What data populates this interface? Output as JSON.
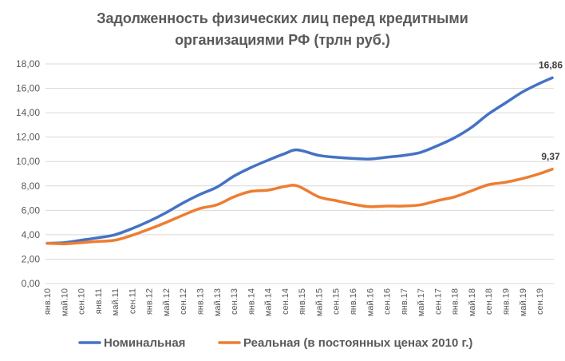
{
  "chart_data": {
    "type": "line",
    "title_line1": "Задолженность физических лиц перед  кредитными",
    "title_line2": "организациями РФ (трлн руб.)",
    "ylim": [
      0,
      18
    ],
    "yticks": [
      "0,00",
      "2,00",
      "4,00",
      "6,00",
      "8,00",
      "10,00",
      "12,00",
      "14,00",
      "16,00",
      "18,00"
    ],
    "ytick_values": [
      0,
      2,
      4,
      6,
      8,
      10,
      12,
      14,
      16,
      18
    ],
    "grid": true,
    "legend_position": "bottom",
    "x_period": {
      "start": "2010-01",
      "end": "2019-12",
      "frequency": "monthly"
    },
    "xticks": [
      {
        "label": "янв.10",
        "month": 0
      },
      {
        "label": "май.10",
        "month": 4
      },
      {
        "label": "сен.10",
        "month": 8
      },
      {
        "label": "янв.11",
        "month": 12
      },
      {
        "label": "май.11",
        "month": 16
      },
      {
        "label": "сен.11",
        "month": 20
      },
      {
        "label": "янв.12",
        "month": 24
      },
      {
        "label": "май.12",
        "month": 28
      },
      {
        "label": "сен.12",
        "month": 32
      },
      {
        "label": "янв.13",
        "month": 36
      },
      {
        "label": "май.13",
        "month": 40
      },
      {
        "label": "сен.13",
        "month": 44
      },
      {
        "label": "янв.14",
        "month": 48
      },
      {
        "label": "май.14",
        "month": 52
      },
      {
        "label": "сен.14",
        "month": 56
      },
      {
        "label": "янв.15",
        "month": 60
      },
      {
        "label": "май.15",
        "month": 64
      },
      {
        "label": "сен.15",
        "month": 68
      },
      {
        "label": "янв.16",
        "month": 72
      },
      {
        "label": "май.16",
        "month": 76
      },
      {
        "label": "сен.16",
        "month": 80
      },
      {
        "label": "янв.17",
        "month": 84
      },
      {
        "label": "май.17",
        "month": 88
      },
      {
        "label": "сен.17",
        "month": 92
      },
      {
        "label": "янв.18",
        "month": 96
      },
      {
        "label": "май.18",
        "month": 100
      },
      {
        "label": "сен.18",
        "month": 104
      },
      {
        "label": "янв.19",
        "month": 108
      },
      {
        "label": "май.19",
        "month": 112
      },
      {
        "label": "сен.19",
        "month": 116
      }
    ],
    "series": [
      {
        "name": "Номинальная",
        "color": "#4472C4",
        "end_label": "16,86",
        "points": [
          [
            "янв.10",
            3.3
          ],
          [
            "май.10",
            3.35
          ],
          [
            "сен.10",
            3.55
          ],
          [
            "янв.11",
            3.75
          ],
          [
            "май.11",
            4.0
          ],
          [
            "сен.11",
            4.5
          ],
          [
            "янв.12",
            5.1
          ],
          [
            "май.12",
            5.8
          ],
          [
            "сен.12",
            6.6
          ],
          [
            "янв.13",
            7.3
          ],
          [
            "май.13",
            7.9
          ],
          [
            "сен.13",
            8.8
          ],
          [
            "янв.14",
            9.5
          ],
          [
            "май.14",
            10.1
          ],
          [
            "сен.14",
            10.65
          ],
          [
            "дек.14",
            10.95
          ],
          [
            "май.15",
            10.5
          ],
          [
            "сен.15",
            10.35
          ],
          [
            "янв.16",
            10.25
          ],
          [
            "май.16",
            10.2
          ],
          [
            "сен.16",
            10.35
          ],
          [
            "янв.17",
            10.5
          ],
          [
            "май.17",
            10.75
          ],
          [
            "сен.17",
            11.3
          ],
          [
            "янв.18",
            11.95
          ],
          [
            "май.18",
            12.8
          ],
          [
            "сен.18",
            13.9
          ],
          [
            "янв.19",
            14.8
          ],
          [
            "май.19",
            15.7
          ],
          [
            "сен.19",
            16.4
          ],
          [
            "дек.19",
            16.86
          ]
        ]
      },
      {
        "name": "Реальная (в постоянных ценах 2010 г.)",
        "color": "#ED7D31",
        "end_label": "9,37",
        "points": [
          [
            "янв.10",
            3.3
          ],
          [
            "май.10",
            3.25
          ],
          [
            "сен.10",
            3.35
          ],
          [
            "янв.11",
            3.45
          ],
          [
            "май.11",
            3.55
          ],
          [
            "сен.11",
            3.95
          ],
          [
            "янв.12",
            4.45
          ],
          [
            "май.12",
            5.0
          ],
          [
            "сен.12",
            5.6
          ],
          [
            "янв.13",
            6.15
          ],
          [
            "май.13",
            6.45
          ],
          [
            "сен.13",
            7.1
          ],
          [
            "янв.14",
            7.55
          ],
          [
            "май.14",
            7.65
          ],
          [
            "сен.14",
            7.95
          ],
          [
            "дек.14",
            8.0
          ],
          [
            "май.15",
            7.1
          ],
          [
            "сен.15",
            6.8
          ],
          [
            "янв.16",
            6.5
          ],
          [
            "май.16",
            6.3
          ],
          [
            "сен.16",
            6.35
          ],
          [
            "янв.17",
            6.35
          ],
          [
            "май.17",
            6.45
          ],
          [
            "сен.17",
            6.8
          ],
          [
            "янв.18",
            7.1
          ],
          [
            "май.18",
            7.6
          ],
          [
            "сен.18",
            8.1
          ],
          [
            "янв.19",
            8.3
          ],
          [
            "май.19",
            8.6
          ],
          [
            "сен.19",
            9.0
          ],
          [
            "дек.19",
            9.37
          ]
        ]
      }
    ]
  }
}
